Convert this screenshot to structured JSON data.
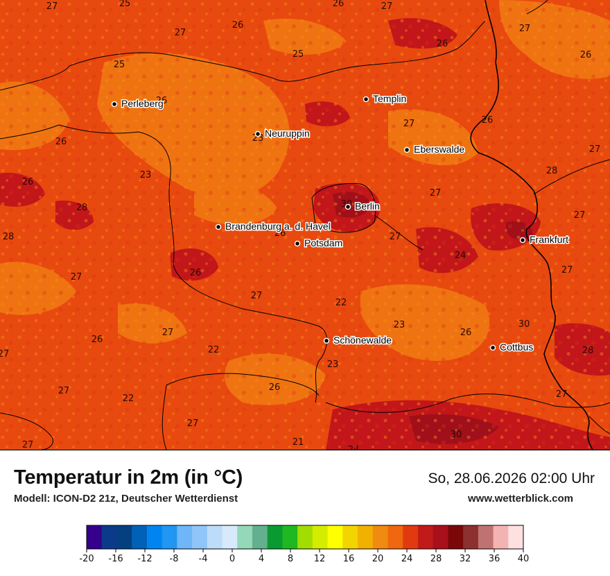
{
  "header": {
    "title": "Temperatur in 2m (in °C)",
    "subtitle": "Modell: ICON-D2 21z, Deutscher Wetterdienst",
    "datetime": "So, 28.06.2026 02:00 Uhr",
    "website": "www.wetterblick.com"
  },
  "colors": {
    "t22": "#e94f16",
    "t24": "#f07712",
    "t26": "#e83c10",
    "t28": "#c0161a",
    "t30": "#a00f1a",
    "border": "#000000"
  },
  "cities": [
    {
      "name": "Perleberg"
    },
    {
      "name": "Templin"
    },
    {
      "name": "Neuruppin"
    },
    {
      "name": "Eberswalde"
    },
    {
      "name": "Berlin"
    },
    {
      "name": "Brandenburg a. d. Havel"
    },
    {
      "name": "Potsdam"
    },
    {
      "name": "Frankfurt"
    },
    {
      "name": "Schönewalde"
    },
    {
      "name": "Cottbus"
    }
  ],
  "value_labels": [
    "27",
    "25",
    "26",
    "27",
    "27",
    "26",
    "27",
    "26",
    "26",
    "25",
    "25",
    "26",
    "23",
    "27",
    "26",
    "26",
    "23",
    "27",
    "28",
    "26",
    "28",
    "27",
    "27",
    "30",
    "26",
    "28",
    "27",
    "24",
    "27",
    "27",
    "26",
    "27",
    "22",
    "23",
    "26",
    "26",
    "27",
    "30",
    "28",
    "27",
    "22",
    "23",
    "26",
    "27",
    "27",
    "22",
    "27",
    "21",
    "24",
    "30",
    "27"
  ],
  "legend": {
    "ticks": [
      "-20",
      "-16",
      "-12",
      "-8",
      "-4",
      "0",
      "4",
      "8",
      "12",
      "16",
      "20",
      "24",
      "28",
      "32",
      "36",
      "40"
    ],
    "colors": [
      "#34008c",
      "#0b3a8a",
      "#043f80",
      "#0160b8",
      "#0084f0",
      "#2196f3",
      "#6fb6f8",
      "#8fc5f8",
      "#bcdcf9",
      "#d8e9fb",
      "#94d8b8",
      "#62b08e",
      "#0a9a32",
      "#20b820",
      "#a2dc00",
      "#d4ec00",
      "#ffff00",
      "#f2d400",
      "#f2b000",
      "#f08a10",
      "#ef6810",
      "#e23a10",
      "#c21a18",
      "#a8101c",
      "#7a0808",
      "#8c3030",
      "#c07272",
      "#f4b3b3",
      "#fde0e0"
    ]
  }
}
